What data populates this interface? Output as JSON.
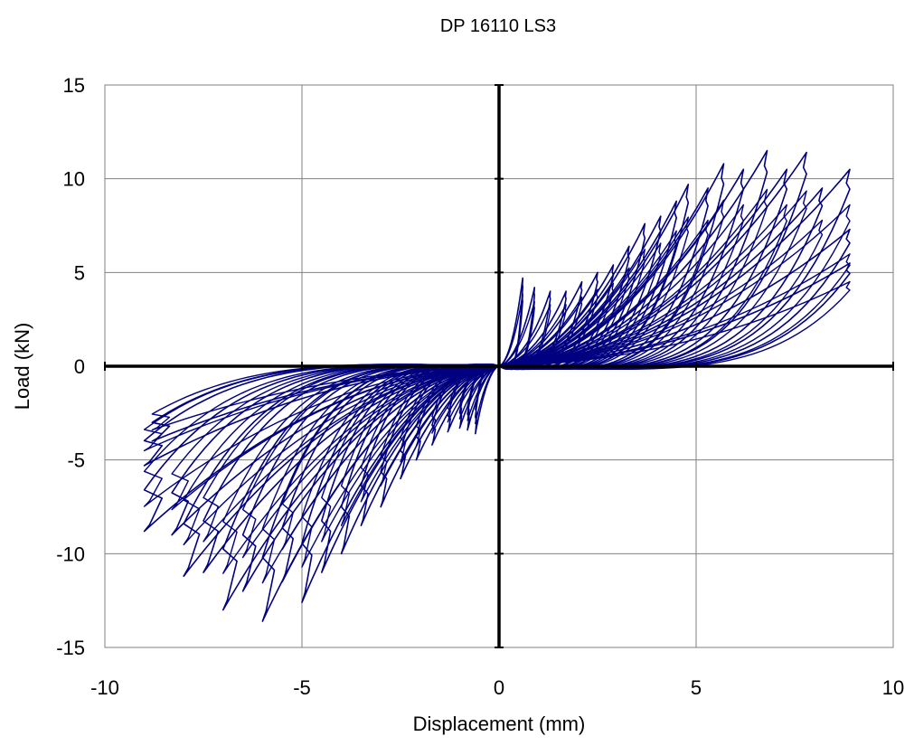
{
  "chart_data": {
    "type": "line",
    "title": "DP 16110 LS3",
    "xlabel": "Displacement (mm)",
    "ylabel": "Load (kN)",
    "xlim": [
      -10,
      10
    ],
    "ylim": [
      -15,
      15
    ],
    "x_ticks": [
      "-10",
      "-5",
      "0",
      "5",
      "10"
    ],
    "y_ticks": [
      "15",
      "10",
      "5",
      "0",
      "-5",
      "-10",
      "-15"
    ],
    "grid": true,
    "legend": "none",
    "series_color": "#000080",
    "series": [
      {
        "cycles": [
          {
            "xmax": 0.6,
            "ypos": 4.7,
            "xmin": -0.6,
            "yneg": -3.6
          },
          {
            "xmax": 0.9,
            "ypos": 4.2,
            "xmin": -0.8,
            "yneg": -3.4
          },
          {
            "xmax": 1.3,
            "ypos": 4.0,
            "xmin": -1.0,
            "yneg": -3.3
          },
          {
            "xmax": 1.7,
            "ypos": 4.0,
            "xmin": -1.3,
            "yneg": -3.5
          },
          {
            "xmax": 2.1,
            "ypos": 4.5,
            "xmin": -1.7,
            "yneg": -4.2
          },
          {
            "xmax": 2.5,
            "ypos": 5.0,
            "xmin": -2.1,
            "yneg": -5.0
          },
          {
            "xmax": 2.9,
            "ypos": 5.4,
            "xmin": -2.5,
            "yneg": -6.0
          },
          {
            "xmax": 3.3,
            "ypos": 6.4,
            "xmin": -3.0,
            "yneg": -7.5
          },
          {
            "xmax": 3.7,
            "ypos": 7.6,
            "xmin": -3.5,
            "yneg": -8.5
          },
          {
            "xmax": 4.1,
            "ypos": 8.0,
            "xmin": -4.0,
            "yneg": -10.0
          },
          {
            "xmax": 4.5,
            "ypos": 8.8,
            "xmin": -4.5,
            "yneg": -11.0
          },
          {
            "xmax": 4.8,
            "ypos": 9.7,
            "xmin": -5.0,
            "yneg": -12.6
          },
          {
            "xmax": 5.3,
            "ypos": 9.5,
            "xmin": -5.5,
            "yneg": -11.5
          },
          {
            "xmax": 5.7,
            "ypos": 10.8,
            "xmin": -6.0,
            "yneg": -13.6
          },
          {
            "xmax": 6.2,
            "ypos": 10.5,
            "xmin": -6.5,
            "yneg": -12.0
          },
          {
            "xmax": 6.8,
            "ypos": 11.5,
            "xmin": -7.0,
            "yneg": -13.0
          },
          {
            "xmax": 7.3,
            "ypos": 10.5,
            "xmin": -7.5,
            "yneg": -11.0
          },
          {
            "xmax": 7.8,
            "ypos": 11.4,
            "xmin": -8.0,
            "yneg": -11.2
          },
          {
            "xmax": 8.2,
            "ypos": 9.5,
            "xmin": -8.3,
            "yneg": -9.0
          },
          {
            "xmax": 8.9,
            "ypos": 10.5,
            "xmin": -9.0,
            "yneg": -8.8
          },
          {
            "xmax": 8.9,
            "ypos": 7.3,
            "xmin": -9.0,
            "yneg": -5.3
          },
          {
            "xmax": 8.9,
            "ypos": 5.5,
            "xmin": -8.8,
            "yneg": -4.0
          }
        ]
      }
    ]
  }
}
